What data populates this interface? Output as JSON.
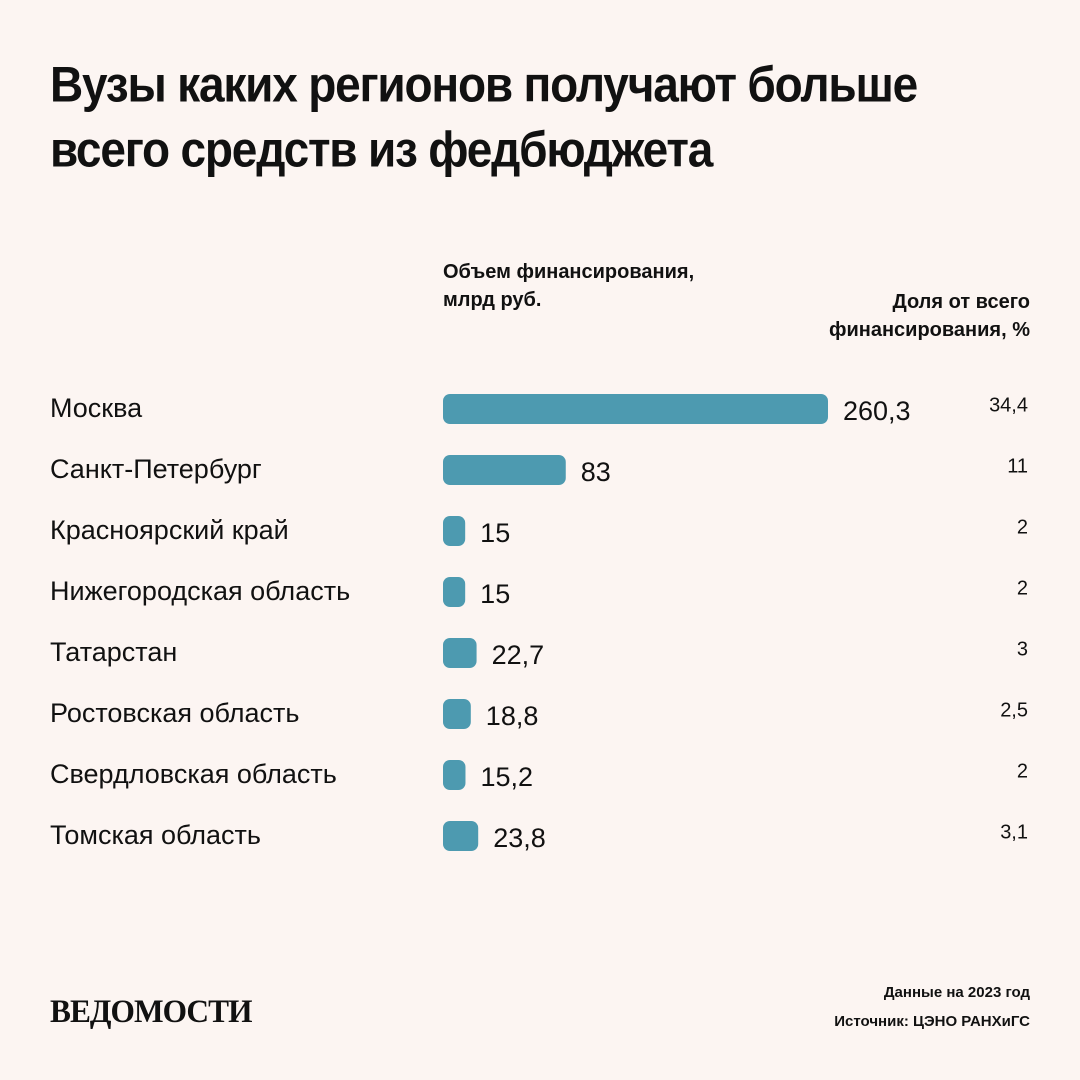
{
  "title": "Вузы каких регионов получают больше всего средств из федбюджета",
  "headers": {
    "amount": "Объем финансирования, млрд руб.",
    "share": "Доля от всего финансирования, %"
  },
  "footer": {
    "date_note": "Данные на 2023 год",
    "source": "Источник: ЦЭНО РАНХиГС",
    "logo": "ВЕДОМОСТИ"
  },
  "colors": {
    "bar": "#4d9ab0",
    "background": "#fcf5f2",
    "text": "#111111"
  },
  "chart_data": {
    "type": "bar",
    "orientation": "horizontal",
    "categories": [
      "Москва",
      "Санкт-Петербург",
      "Красноярский край",
      "Нижегородская область",
      "Татарстан",
      "Ростовская область",
      "Свердловская область",
      "Томская область"
    ],
    "series": [
      {
        "values": [
          260.3,
          83,
          15,
          15,
          22.7,
          18.8,
          15.2,
          23.8
        ],
        "value_labels": [
          "260,3",
          "83",
          "15",
          "15",
          "22,7",
          "18,8",
          "15,2",
          "23,8"
        ]
      }
    ],
    "share_labels": [
      "34,4",
      "11",
      "2",
      "2",
      "3",
      "2,5",
      "2",
      "3,1"
    ],
    "xlabel": "Объем финансирования, млрд руб.",
    "grid": false,
    "legend": "none"
  }
}
